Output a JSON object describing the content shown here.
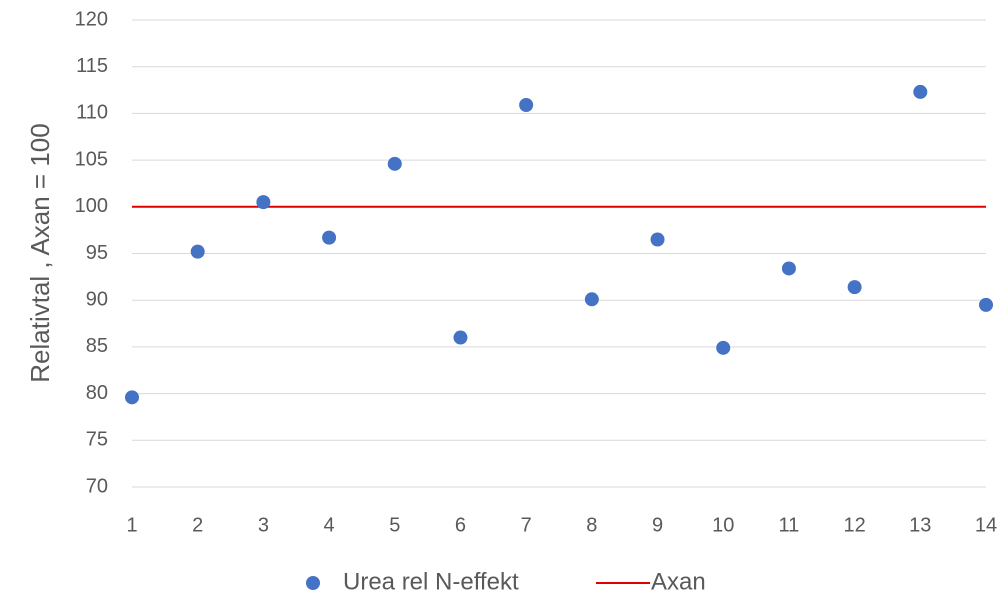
{
  "chart_data": {
    "type": "scatter",
    "title": "",
    "xlabel": "",
    "ylabel": "Relativtal , Axan = 100",
    "xlim": [
      1,
      14
    ],
    "ylim": [
      70,
      120
    ],
    "x_ticks": [
      1,
      2,
      3,
      4,
      5,
      6,
      7,
      8,
      9,
      10,
      11,
      12,
      13,
      14
    ],
    "y_ticks": [
      70,
      75,
      80,
      85,
      90,
      95,
      100,
      105,
      110,
      115,
      120
    ],
    "grid": "horizontal",
    "legend_position": "bottom",
    "series": [
      {
        "name": "Urea rel N-effekt",
        "kind": "scatter",
        "color": "#4472C4",
        "x": [
          1,
          2,
          3,
          4,
          5,
          6,
          7,
          8,
          9,
          10,
          11,
          12,
          13,
          14
        ],
        "y": [
          79.6,
          95.2,
          100.5,
          96.7,
          104.6,
          86.0,
          110.9,
          90.1,
          96.5,
          84.9,
          93.4,
          91.4,
          112.3,
          89.5
        ]
      },
      {
        "name": "Axan",
        "kind": "line",
        "color": "#E00000",
        "x": [
          1,
          14
        ],
        "y": [
          100,
          100
        ]
      }
    ]
  }
}
